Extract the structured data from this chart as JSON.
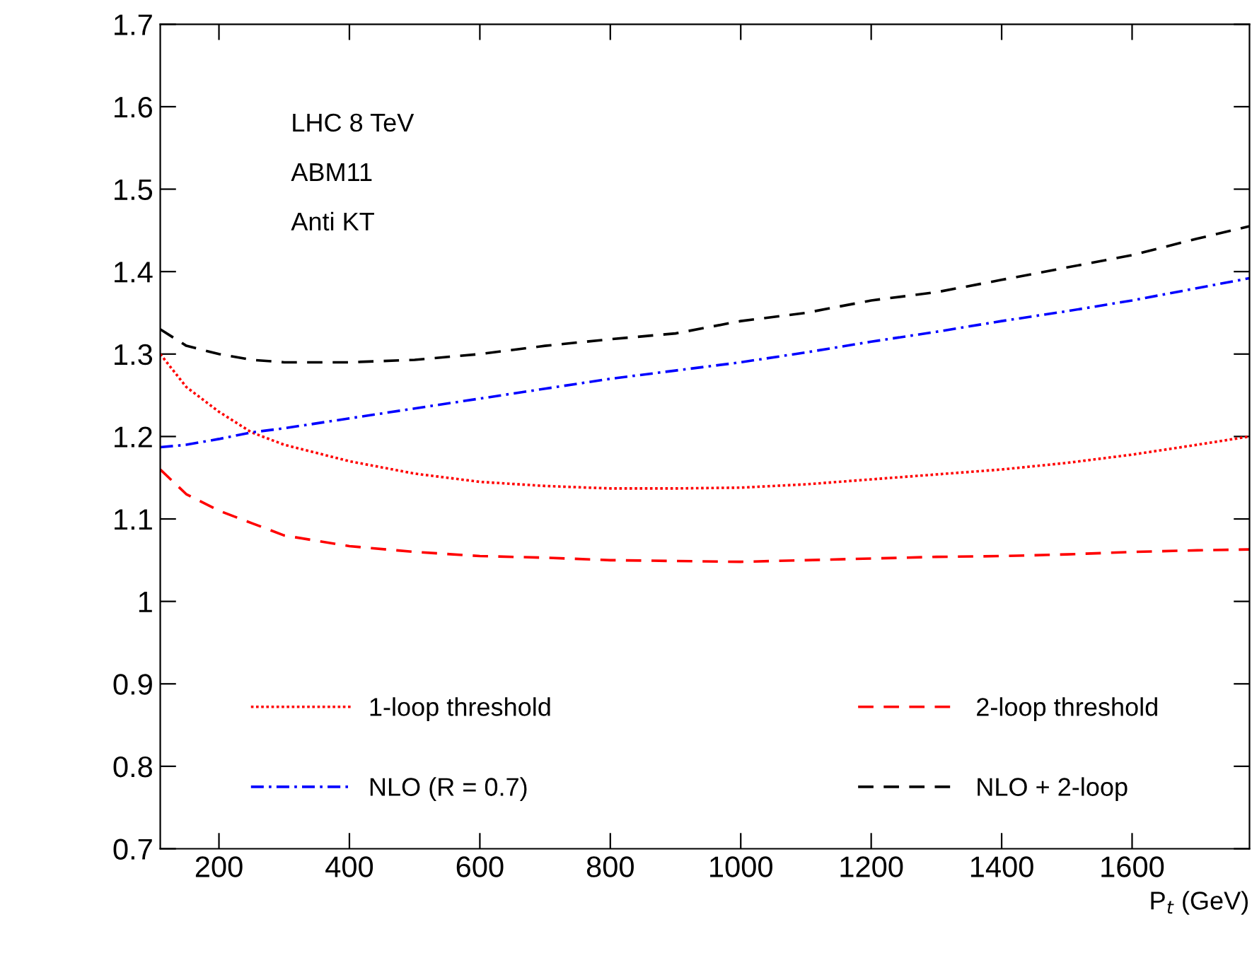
{
  "chart_data": {
    "type": "line",
    "xlabel": "P$_{t}$ (GeV)",
    "x": [
      110,
      150,
      200,
      250,
      300,
      400,
      500,
      600,
      700,
      800,
      900,
      1000,
      1100,
      1200,
      1300,
      1400,
      1500,
      1600,
      1700,
      1780
    ],
    "series": [
      {
        "name": "1-loop threshold",
        "color": "#ff0000",
        "line_style": "dotted",
        "values": [
          1.3,
          1.26,
          1.23,
          1.205,
          1.19,
          1.17,
          1.155,
          1.145,
          1.14,
          1.137,
          1.137,
          1.138,
          1.142,
          1.148,
          1.154,
          1.16,
          1.168,
          1.178,
          1.19,
          1.2
        ]
      },
      {
        "name": "2-loop threshold",
        "color": "#ff0000",
        "line_style": "dashed",
        "values": [
          1.16,
          1.13,
          1.11,
          1.095,
          1.08,
          1.067,
          1.06,
          1.055,
          1.053,
          1.05,
          1.049,
          1.048,
          1.05,
          1.052,
          1.054,
          1.055,
          1.057,
          1.06,
          1.062,
          1.063
        ]
      },
      {
        "name": "NLO (R = 0.7)",
        "color": "#0000ff",
        "line_style": "dashdot",
        "values": [
          1.187,
          1.19,
          1.197,
          1.205,
          1.21,
          1.222,
          1.234,
          1.246,
          1.258,
          1.27,
          1.28,
          1.29,
          1.302,
          1.315,
          1.327,
          1.34,
          1.352,
          1.365,
          1.38,
          1.392
        ]
      },
      {
        "name": "NLO + 2-loop",
        "color": "#000000",
        "line_style": "dashed",
        "values": [
          1.33,
          1.31,
          1.3,
          1.293,
          1.29,
          1.29,
          1.293,
          1.3,
          1.31,
          1.318,
          1.325,
          1.34,
          1.35,
          1.365,
          1.375,
          1.39,
          1.405,
          1.42,
          1.44,
          1.455
        ]
      }
    ],
    "annotations": [
      "LHC 8 TeV",
      "ABM11",
      "Anti KT"
    ],
    "xlim": [
      110,
      1780
    ],
    "ylim": [
      0.7,
      1.7
    ],
    "xticks": [
      200,
      400,
      600,
      800,
      1000,
      1200,
      1400,
      1600
    ],
    "yticks": [
      0.7,
      0.8,
      0.9,
      1,
      1.1,
      1.2,
      1.3,
      1.4,
      1.5,
      1.6,
      1.7
    ],
    "legend": "bottom",
    "grid": false
  }
}
